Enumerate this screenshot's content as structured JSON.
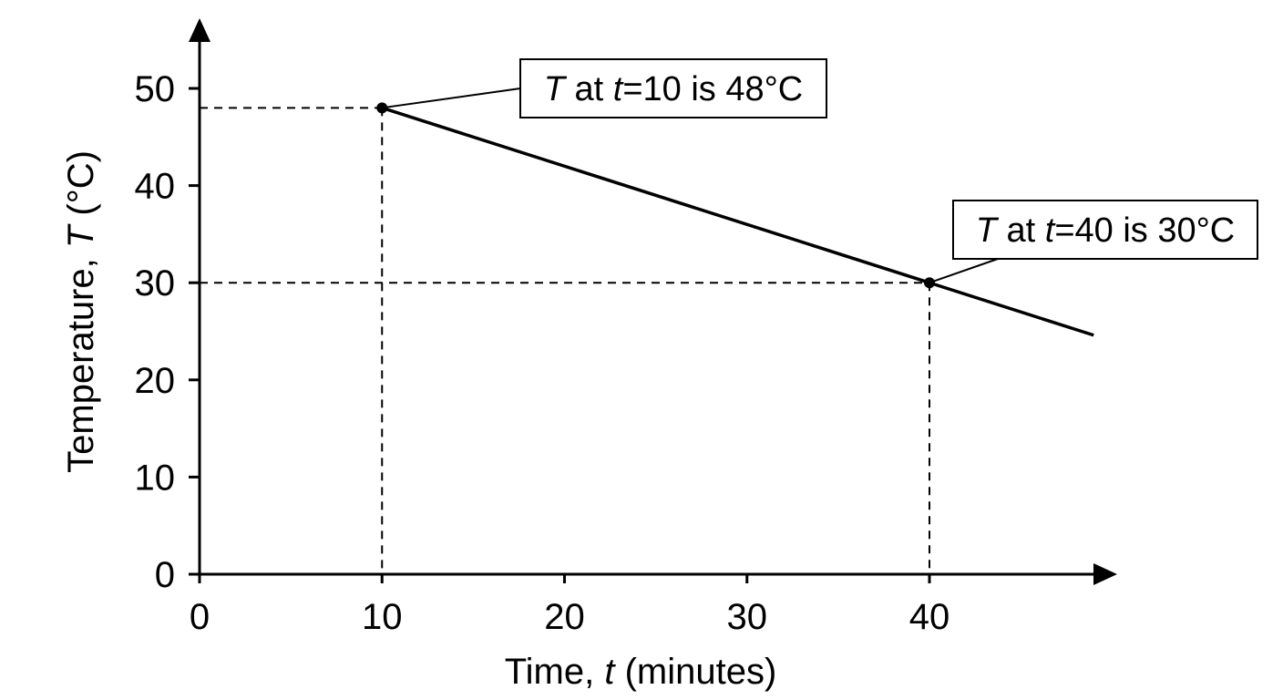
{
  "chart_data": {
    "type": "line",
    "title": "",
    "xlabel": {
      "prefix": "Time, ",
      "var": "t",
      "suffix": " (minutes)"
    },
    "ylabel": {
      "prefix": "Temperature, ",
      "var": "T",
      "suffix": " (°C)"
    },
    "xlim": [
      0,
      49
    ],
    "ylim": [
      0,
      55
    ],
    "x_ticks": [
      0,
      10,
      20,
      30,
      40
    ],
    "y_ticks": [
      0,
      10,
      20,
      30,
      40,
      50
    ],
    "grid": false,
    "series": [
      {
        "x": [
          10,
          49
        ],
        "y": [
          48,
          24.6
        ]
      }
    ],
    "points": [
      {
        "x": 10,
        "y": 48,
        "label": {
          "v1": "T",
          "mid": " at ",
          "v2": "t",
          "rest": "=10 is 48°C"
        }
      },
      {
        "x": 40,
        "y": 30,
        "label": {
          "v1": "T",
          "mid": " at ",
          "v2": "t",
          "rest": "=40 is 30°C"
        }
      }
    ]
  }
}
